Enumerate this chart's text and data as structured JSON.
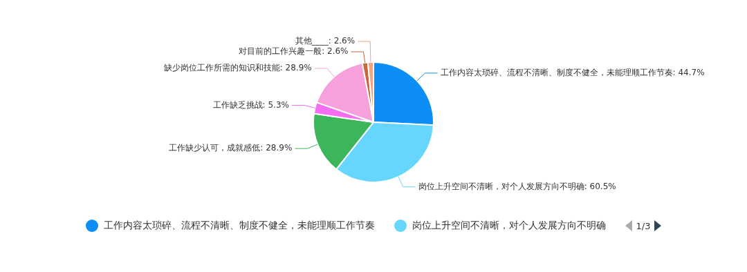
{
  "chart_data": {
    "type": "pie",
    "categories": [
      "工作内容太琐碎、流程不清晰、制度不健全，未能理顺工作节奏",
      "岗位上升空间不清晰，对个人发展方向不明确",
      "工作缺少认可，成就感低",
      "工作缺乏挑战",
      "缺少岗位工作所需的知识和技能",
      "对目前的工作兴趣一般",
      "其他____"
    ],
    "values": [
      44.7,
      60.5,
      28.9,
      5.3,
      28.9,
      2.6,
      2.6
    ],
    "value_labels": [
      ": 44.7%",
      ": 60.5%",
      ": 28.9%",
      ": 5.3%",
      ": 28.9%",
      ": 2.6%",
      ": 2.6%"
    ],
    "colors": [
      "#0d8ef6",
      "#66d6ff",
      "#3db55a",
      "#f46ef0",
      "#f7a1dc",
      "#c9673c",
      "#f1a386"
    ],
    "legend": "bottom",
    "annotations": [
      "1/3"
    ]
  }
}
